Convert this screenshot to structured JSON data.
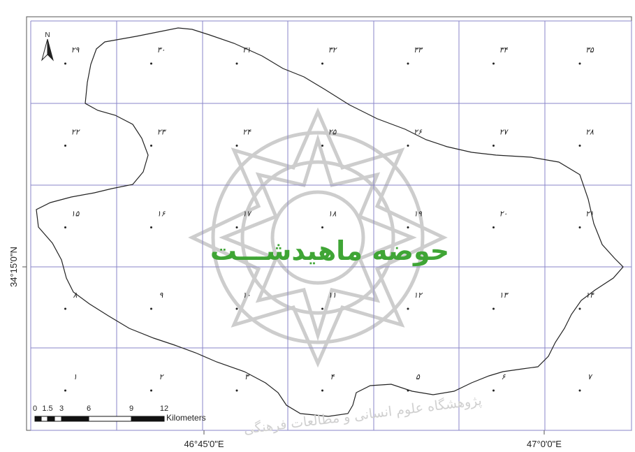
{
  "map": {
    "title": "حوضه ماهیدشـــت",
    "title_color": "#3fa535",
    "north_arrow_label": "N",
    "cell_labels": [
      "۲۹",
      "۳۰",
      "۳۱",
      "۳۲",
      "۳۳",
      "۳۴",
      "۳۵",
      "۲۲",
      "۲۳",
      "۲۴",
      "۲۵",
      "۲۶",
      "۲۷",
      "۲۸",
      "۱۵",
      "۱۶",
      "۱۷",
      "۱۸",
      "۱۹",
      "۲۰",
      "۲۱",
      "۸",
      "۹",
      "۱۰",
      "۱۱",
      "۱۲",
      "۱۳",
      "۱۴",
      "۱",
      "۲",
      "۳",
      "۴",
      "۵",
      "۶",
      "۷"
    ],
    "y_axis_label": "34°15'0\"N",
    "x_axis_labels": [
      "46°45'0\"E",
      "47°0'0\"E"
    ],
    "scale_bar": {
      "ticks": [
        "0",
        "1.5",
        "3",
        "6",
        "9",
        "12"
      ],
      "unit": "Kilometers"
    },
    "watermark_text": "پژوهشگاه علوم انسانی و مطالعات فرهنگی",
    "grid_color": "#8a86c8",
    "boundary_color": "#222222"
  }
}
